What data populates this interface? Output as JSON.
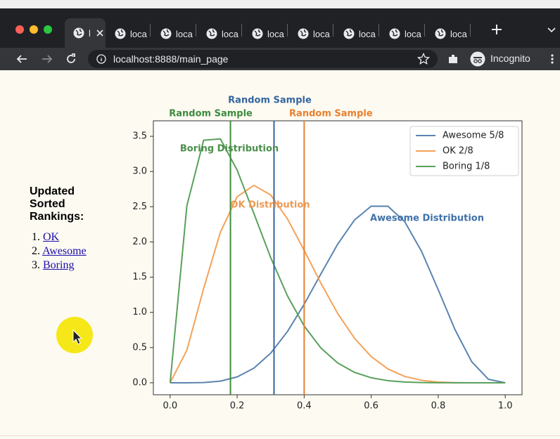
{
  "browser": {
    "tabs": [
      "l",
      "loca",
      "loca",
      "loca",
      "loca",
      "loca",
      "loca",
      "loca",
      "loca"
    ],
    "url": "localhost:8888/main_page",
    "profile": "Incognito"
  },
  "sidebar": {
    "title": "Updated Sorted Rankings:",
    "rankings": [
      {
        "number": "1.",
        "label": "OK"
      },
      {
        "number": "2.",
        "label": "Awesome"
      },
      {
        "number": "3.",
        "label": "Boring"
      }
    ]
  },
  "chart_data": {
    "type": "line",
    "x": [
      0,
      0.05,
      0.1,
      0.15,
      0.2,
      0.25,
      0.3,
      0.35,
      0.4,
      0.45,
      0.5,
      0.55,
      0.6,
      0.65,
      0.7,
      0.75,
      0.8,
      0.85,
      0.9,
      0.95,
      1.0
    ],
    "series": [
      {
        "name": "Awesome 5/8",
        "color": "#5b84b1",
        "annotation": "Awesome Distribution",
        "annotation_color": "#3f72a8",
        "values": [
          0,
          0.0001,
          0.0037,
          0.0235,
          0.083,
          0.208,
          0.42,
          0.727,
          1.115,
          1.547,
          1.969,
          2.311,
          2.508,
          2.507,
          2.287,
          1.869,
          1.321,
          0.755,
          0.298,
          0.049,
          0
        ]
      },
      {
        "name": "OK 2/8",
        "color": "#f4a259",
        "annotation": "OK Distribution",
        "annotation_color": "#eb9a55",
        "values": [
          0,
          0.463,
          1.339,
          2.138,
          2.642,
          2.803,
          2.668,
          2.328,
          1.881,
          1.413,
          0.984,
          0.633,
          0.372,
          0.196,
          0.09,
          0.035,
          0.01,
          0.002,
          0,
          0,
          0
        ]
      },
      {
        "name": "Boring 1/8",
        "color": "#5aa05a",
        "annotation": "Boring Distribution",
        "annotation_color": "#4a8f4a",
        "values": [
          0,
          2.514,
          3.444,
          3.463,
          3.02,
          2.403,
          1.779,
          1.235,
          0.806,
          0.493,
          0.281,
          0.148,
          0.071,
          0.03,
          0.011,
          0.003,
          0.001,
          0,
          0,
          0,
          0
        ]
      }
    ],
    "vlines": [
      {
        "x": 0.18,
        "color": "#3d8b3d",
        "label": "Random Sample"
      },
      {
        "x": 0.31,
        "color": "#3565a0",
        "label": "Random Sample"
      },
      {
        "x": 0.4,
        "color": "#e8812f",
        "label": "Random Sample"
      }
    ],
    "xlim": [
      -0.05,
      1.05
    ],
    "ylim": [
      -0.17,
      3.72
    ],
    "xticks": [
      {
        "value": 0,
        "label": "0.0"
      },
      0.2,
      0.4,
      0.6,
      0.8,
      {
        "value": 1,
        "label": "1.0"
      }
    ],
    "yticks": [
      {
        "value": 0,
        "label": "0.0"
      },
      0.5,
      {
        "value": 1,
        "label": "1.0"
      },
      1.5,
      {
        "value": 2,
        "label": "2.0"
      },
      2.5,
      {
        "value": 3,
        "label": "3.0"
      },
      3.5
    ],
    "legend": "upper right"
  }
}
